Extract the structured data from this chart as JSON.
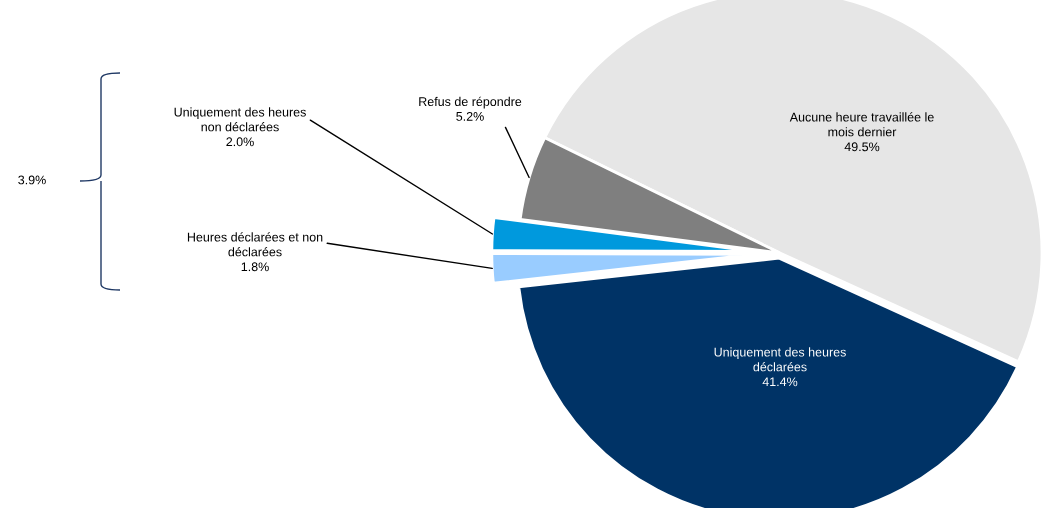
{
  "chart_data": {
    "type": "pie",
    "categories": [
      "Aucune heure travaillée le\nmois dernier",
      "Refus de répondre",
      "Uniquement des heures\nnon déclarées",
      "Heures déclarées et non\ndéclarées",
      "Uniquement des heures\ndéclarées"
    ],
    "values": [
      49.5,
      5.2,
      2.0,
      1.8,
      41.4
    ],
    "value_labels": [
      "49.5%",
      "5.2%",
      "2.0%",
      "1.8%",
      "41.4%"
    ],
    "colors": [
      "#e6e6e6",
      "#7f7f7f",
      "#0099dd",
      "#99ccff",
      "#003366"
    ],
    "annotations": [
      "3.9%"
    ],
    "legend": false
  }
}
